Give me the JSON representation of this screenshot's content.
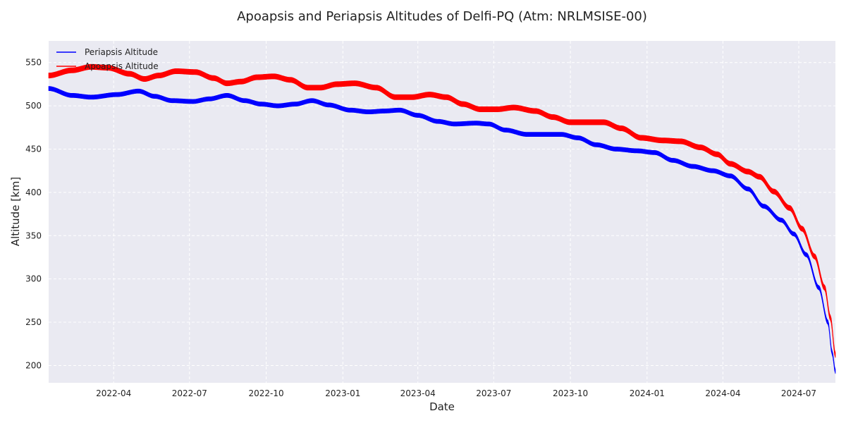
{
  "chart_data": {
    "type": "line",
    "title": "Apoapsis and Periapsis Altitudes of Delfi-PQ (Atm: NRLMSISE-00)",
    "xlabel": "Date",
    "ylabel": "Altitude [km]",
    "xlim": [
      "2022-01-13",
      "2024-08-14"
    ],
    "ylim": [
      180,
      575
    ],
    "x_ticks": [
      "2022-04",
      "2022-07",
      "2022-10",
      "2023-01",
      "2023-04",
      "2023-07",
      "2023-10",
      "2024-01",
      "2024-04",
      "2024-07"
    ],
    "y_ticks": [
      200,
      250,
      300,
      350,
      400,
      450,
      500,
      550
    ],
    "grid": true,
    "legend": "top-left",
    "background": "#eaeaf2",
    "series": [
      {
        "name": "Periapsis Altitude",
        "color": "#0000ff",
        "band_width_km": 5,
        "points": [
          [
            "2022-01-13",
            520
          ],
          [
            "2022-02-10",
            512
          ],
          [
            "2022-03-05",
            510
          ],
          [
            "2022-04-05",
            513
          ],
          [
            "2022-05-01",
            517
          ],
          [
            "2022-05-20",
            511
          ],
          [
            "2022-06-10",
            506
          ],
          [
            "2022-07-05",
            505
          ],
          [
            "2022-07-25",
            508
          ],
          [
            "2022-08-15",
            512
          ],
          [
            "2022-09-05",
            506
          ],
          [
            "2022-09-25",
            502
          ],
          [
            "2022-10-15",
            500
          ],
          [
            "2022-11-05",
            502
          ],
          [
            "2022-11-25",
            506
          ],
          [
            "2022-12-15",
            501
          ],
          [
            "2023-01-10",
            495
          ],
          [
            "2023-02-01",
            493
          ],
          [
            "2023-02-20",
            494
          ],
          [
            "2023-03-10",
            495
          ],
          [
            "2023-04-01",
            489
          ],
          [
            "2023-04-25",
            482
          ],
          [
            "2023-05-15",
            479
          ],
          [
            "2023-06-10",
            480
          ],
          [
            "2023-06-25",
            479
          ],
          [
            "2023-07-15",
            472
          ],
          [
            "2023-08-10",
            467
          ],
          [
            "2023-09-01",
            467
          ],
          [
            "2023-09-20",
            467
          ],
          [
            "2023-10-10",
            463
          ],
          [
            "2023-11-01",
            455
          ],
          [
            "2023-11-25",
            450
          ],
          [
            "2023-12-20",
            448
          ],
          [
            "2024-01-10",
            446
          ],
          [
            "2024-02-01",
            437
          ],
          [
            "2024-02-25",
            430
          ],
          [
            "2024-03-20",
            425
          ],
          [
            "2024-04-10",
            419
          ],
          [
            "2024-05-01",
            404
          ],
          [
            "2024-05-20",
            384
          ],
          [
            "2024-06-10",
            368
          ],
          [
            "2024-06-25",
            352
          ],
          [
            "2024-07-10",
            328
          ],
          [
            "2024-07-25",
            290
          ],
          [
            "2024-08-05",
            250
          ],
          [
            "2024-08-10",
            215
          ],
          [
            "2024-08-14",
            193
          ]
        ]
      },
      {
        "name": "Apoapsis Altitude",
        "color": "#ff0000",
        "band_width_km": 6,
        "points": [
          [
            "2022-01-13",
            535
          ],
          [
            "2022-02-10",
            541
          ],
          [
            "2022-03-05",
            545
          ],
          [
            "2022-03-25",
            544
          ],
          [
            "2022-04-20",
            537
          ],
          [
            "2022-05-08",
            531
          ],
          [
            "2022-05-25",
            535
          ],
          [
            "2022-06-15",
            540
          ],
          [
            "2022-07-08",
            539
          ],
          [
            "2022-07-30",
            532
          ],
          [
            "2022-08-15",
            526
          ],
          [
            "2022-09-01",
            528
          ],
          [
            "2022-09-20",
            533
          ],
          [
            "2022-10-10",
            534
          ],
          [
            "2022-10-30",
            530
          ],
          [
            "2022-11-20",
            521
          ],
          [
            "2022-12-05",
            521
          ],
          [
            "2022-12-25",
            525
          ],
          [
            "2023-01-15",
            526
          ],
          [
            "2023-02-10",
            521
          ],
          [
            "2023-03-05",
            510
          ],
          [
            "2023-03-25",
            510
          ],
          [
            "2023-04-15",
            513
          ],
          [
            "2023-05-05",
            510
          ],
          [
            "2023-05-25",
            502
          ],
          [
            "2023-06-15",
            496
          ],
          [
            "2023-07-05",
            496
          ],
          [
            "2023-07-25",
            498
          ],
          [
            "2023-08-20",
            494
          ],
          [
            "2023-09-10",
            487
          ],
          [
            "2023-10-01",
            481
          ],
          [
            "2023-10-20",
            481
          ],
          [
            "2023-11-10",
            481
          ],
          [
            "2023-12-01",
            474
          ],
          [
            "2023-12-25",
            463
          ],
          [
            "2024-01-20",
            460
          ],
          [
            "2024-02-10",
            459
          ],
          [
            "2024-03-05",
            452
          ],
          [
            "2024-03-25",
            444
          ],
          [
            "2024-04-10",
            433
          ],
          [
            "2024-05-01",
            424
          ],
          [
            "2024-05-15",
            418
          ],
          [
            "2024-06-01",
            401
          ],
          [
            "2024-06-20",
            382
          ],
          [
            "2024-07-05",
            358
          ],
          [
            "2024-07-20",
            326
          ],
          [
            "2024-08-01",
            290
          ],
          [
            "2024-08-08",
            255
          ],
          [
            "2024-08-14",
            212
          ]
        ]
      }
    ]
  }
}
